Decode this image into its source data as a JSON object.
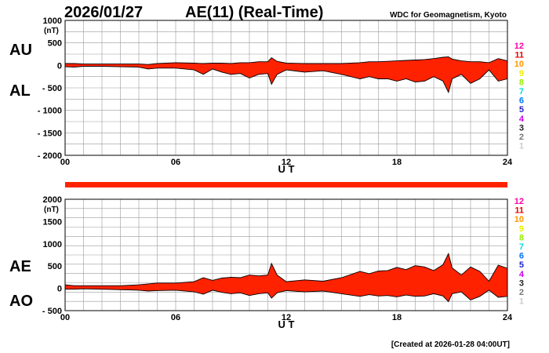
{
  "header": {
    "date": "2026/01/27",
    "title": "AE(11) (Real-Time)",
    "source": "WDC for Geomagnetism, Kyoto"
  },
  "footer": {
    "created": "[Created at 2026-01-28 04:00UT]"
  },
  "legend": {
    "hours": [
      {
        "label": "12",
        "color": "#ff00aa"
      },
      {
        "label": "11",
        "color": "#ee0000"
      },
      {
        "label": "10",
        "color": "#ff9900"
      },
      {
        "label": "9",
        "color": "#eeee00"
      },
      {
        "label": "8",
        "color": "#99ee00"
      },
      {
        "label": "7",
        "color": "#00dddd"
      },
      {
        "label": "6",
        "color": "#0077ff"
      },
      {
        "label": "5",
        "color": "#2222cc"
      },
      {
        "label": "4",
        "color": "#cc00ee"
      },
      {
        "label": "3",
        "color": "#222222"
      },
      {
        "label": "2",
        "color": "#777777"
      },
      {
        "label": "1",
        "color": "#cccccc"
      }
    ]
  },
  "status_bar": {
    "color": "#ff2200"
  },
  "chart_data": [
    {
      "type": "area",
      "name": "AU-AL",
      "label_top": "AU",
      "label_bottom": "AL",
      "unit": "(nT)",
      "xlabel": "U T",
      "xlim": [
        0,
        24
      ],
      "ylim": [
        -2000,
        1000
      ],
      "yticks": [
        1000,
        500,
        0,
        -500,
        -1000,
        -1500,
        -2000
      ],
      "ytick_labels": [
        "1000",
        "500",
        "0",
        "- 500",
        "- 1000",
        "- 1500",
        "- 2000"
      ],
      "xticks": [
        0,
        6,
        12,
        18,
        24
      ],
      "xtick_labels": [
        "00",
        "06",
        "12",
        "18",
        "24"
      ],
      "x": [
        0,
        0.5,
        1,
        2,
        3,
        4,
        4.5,
        5,
        6,
        7,
        7.5,
        8,
        8.5,
        9,
        9.5,
        10,
        10.5,
        11,
        11.2,
        11.5,
        12,
        13,
        14,
        15,
        16,
        16.5,
        17,
        17.5,
        18,
        18.5,
        19,
        19.5,
        20,
        20.5,
        20.8,
        21,
        21.5,
        22,
        22.5,
        23,
        23.5,
        24
      ],
      "series": [
        {
          "name": "AU",
          "values": [
            40,
            40,
            30,
            30,
            30,
            30,
            20,
            40,
            60,
            50,
            40,
            50,
            50,
            40,
            60,
            60,
            80,
            80,
            170,
            90,
            50,
            40,
            40,
            40,
            60,
            80,
            80,
            90,
            100,
            110,
            120,
            130,
            150,
            180,
            190,
            140,
            100,
            80,
            80,
            60,
            150,
            100
          ]
        },
        {
          "name": "AL",
          "values": [
            -30,
            -40,
            -20,
            -20,
            -30,
            -40,
            -80,
            -60,
            -60,
            -100,
            -200,
            -80,
            -150,
            -200,
            -180,
            -280,
            -200,
            -180,
            -420,
            -200,
            -100,
            -150,
            -120,
            -200,
            -300,
            -250,
            -300,
            -300,
            -350,
            -300,
            -370,
            -350,
            -250,
            -350,
            -600,
            -300,
            -200,
            -400,
            -300,
            -100,
            -350,
            -300
          ]
        }
      ]
    },
    {
      "type": "area",
      "name": "AE-AO",
      "label_top": "AE",
      "label_bottom": "AO",
      "unit": "(nT)",
      "xlabel": "U T",
      "xlim": [
        0,
        24
      ],
      "ylim": [
        -500,
        2000
      ],
      "yticks": [
        2000,
        1500,
        1000,
        500,
        0,
        -500
      ],
      "ytick_labels": [
        "2000",
        "1500",
        "1000",
        "500",
        "0",
        "- 500"
      ],
      "xticks": [
        0,
        6,
        12,
        18,
        24
      ],
      "xtick_labels": [
        "00",
        "06",
        "12",
        "18",
        "24"
      ],
      "x": [
        0,
        0.5,
        1,
        2,
        3,
        4,
        4.5,
        5,
        6,
        7,
        7.5,
        8,
        8.5,
        9,
        9.5,
        10,
        10.5,
        11,
        11.2,
        11.5,
        12,
        13,
        14,
        15,
        16,
        16.5,
        17,
        17.5,
        18,
        18.5,
        19,
        19.5,
        20,
        20.5,
        20.8,
        21,
        21.5,
        22,
        22.5,
        23,
        23.5,
        24
      ],
      "series": [
        {
          "name": "AE",
          "values": [
            80,
            60,
            60,
            60,
            60,
            80,
            100,
            120,
            120,
            150,
            240,
            180,
            230,
            250,
            240,
            300,
            280,
            300,
            560,
            300,
            150,
            190,
            160,
            240,
            380,
            330,
            390,
            400,
            470,
            420,
            510,
            480,
            400,
            530,
            780,
            460,
            300,
            480,
            380,
            160,
            520,
            450
          ]
        },
        {
          "name": "AO",
          "values": [
            -20,
            -20,
            -10,
            -20,
            -30,
            -40,
            -60,
            -50,
            -40,
            -80,
            -130,
            -40,
            -90,
            -120,
            -100,
            -160,
            -120,
            -100,
            -220,
            -100,
            -50,
            -80,
            -60,
            -120,
            -180,
            -140,
            -170,
            -160,
            -190,
            -150,
            -180,
            -170,
            -120,
            -170,
            -300,
            -120,
            -80,
            -260,
            -180,
            -40,
            -200,
            -180
          ]
        }
      ]
    }
  ]
}
